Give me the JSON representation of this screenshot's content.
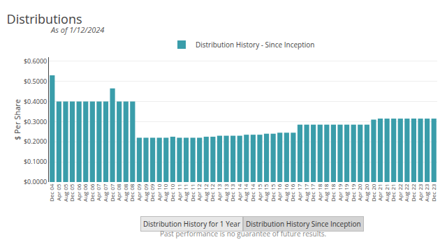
{
  "chart_data": {
    "type": "bar",
    "title": "Distributions",
    "subtitle": "As of 1/12/2024",
    "ylabel": "$ Per Share",
    "categories": [
      "Dec 04",
      "Apr 05",
      "Aug 05",
      "Dec 05",
      "Apr 06",
      "Aug 06",
      "Dec 06",
      "Apr 07",
      "Aug 07",
      "Dec 07",
      "Apr 08",
      "Aug 08",
      "Dec 08",
      "Apr 09",
      "Aug 09",
      "Dec 09",
      "Apr 10",
      "Aug 10",
      "Dec 10",
      "Apr 11",
      "Aug 11",
      "Dec 11",
      "Apr 12",
      "Aug 12",
      "Dec 12",
      "Apr 13",
      "Aug 13",
      "Dec 13",
      "Apr 14",
      "Aug 14",
      "Dec 14",
      "Apr 15",
      "Aug 15",
      "Dec 15",
      "Apr 16",
      "Aug 16",
      "Dec 16",
      "Apr 17",
      "Aug 17",
      "Dec 17",
      "Apr 18",
      "Aug 18",
      "Dec 18",
      "Apr 19",
      "Aug 19",
      "Dec 19",
      "Apr 20",
      "Aug 20",
      "Dec 20",
      "Apr 21",
      "Aug 21",
      "Dec 21",
      "Apr 22",
      "Aug 22",
      "Dec 22",
      "Apr 23",
      "Aug 23",
      "Dec 23"
    ],
    "series": [
      {
        "name": "Distribution History - Since Inception",
        "color": "#3a9daa",
        "values": [
          0.53,
          0.4,
          0.4,
          0.4,
          0.4,
          0.4,
          0.4,
          0.4,
          0.4,
          0.465,
          0.4,
          0.4,
          0.4,
          0.22,
          0.22,
          0.22,
          0.22,
          0.22,
          0.225,
          0.22,
          0.22,
          0.22,
          0.22,
          0.225,
          0.225,
          0.23,
          0.23,
          0.23,
          0.23,
          0.235,
          0.235,
          0.235,
          0.24,
          0.24,
          0.245,
          0.245,
          0.245,
          0.285,
          0.285,
          0.285,
          0.285,
          0.285,
          0.285,
          0.285,
          0.285,
          0.285,
          0.285,
          0.285,
          0.31,
          0.315,
          0.315,
          0.315,
          0.315,
          0.315,
          0.315,
          0.315,
          0.315,
          0.315
        ]
      }
    ],
    "ylim": [
      0,
      0.62
    ],
    "yticks": [
      {
        "value": 0,
        "label": "$0.0000"
      },
      {
        "value": 0.1,
        "label": "$0.1000"
      },
      {
        "value": 0.2,
        "label": "$0.2000"
      },
      {
        "value": 0.3,
        "label": "$0.3000"
      },
      {
        "value": 0.4,
        "label": "$0.4000"
      },
      {
        "value": 0.5,
        "label": "$0.5000"
      },
      {
        "value": 0.6,
        "label": "$0.6000"
      }
    ],
    "grid": true,
    "legend": "top",
    "annotations": [
      "Distribution History for 1 Year",
      "Distribution History Since Inception",
      "Past performance is no guarantee of future results."
    ]
  }
}
